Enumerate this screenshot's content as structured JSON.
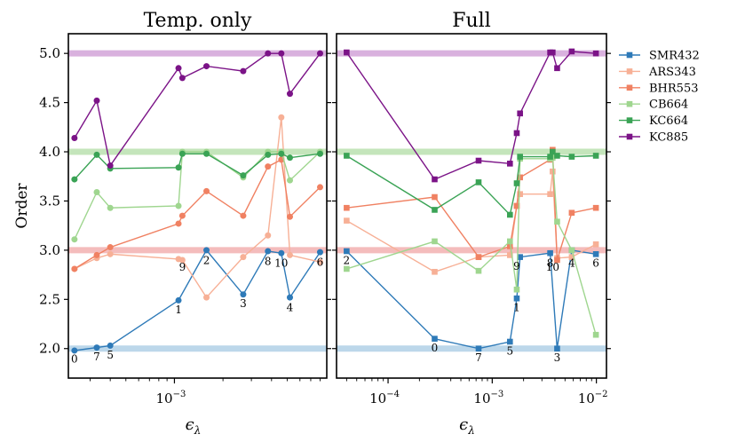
{
  "colors": {
    "SMR432": "#2e7ab8",
    "ARS343": "#f7b096",
    "BHR553": "#f08162",
    "CB664": "#9fd68f",
    "KC664": "#3aa355",
    "KC885": "#7b1387",
    "band_blue": "#bcd7ea",
    "band_red": "#f4bcbc",
    "band_green": "#c4e5bb",
    "band_purple": "#d9b1de"
  },
  "chart_data": [
    {
      "type": "line",
      "title": "Temp. only",
      "xscale": "log",
      "xlim": [
        0.00022,
        0.0088
      ],
      "ylim": [
        1.7,
        5.2
      ],
      "ylabel": "Order",
      "xlabel": "ϵλ",
      "xlabel_main": "ϵ",
      "xlabel_sub": "λ",
      "yticks": [
        2.0,
        2.5,
        3.0,
        3.5,
        4.0,
        4.5,
        5.0
      ],
      "ytick_labels": [
        "2.0",
        "2.5",
        "3.0",
        "3.5",
        "4.0",
        "4.5",
        "5.0"
      ],
      "xticks": [
        {
          "value": 0.001,
          "base": "10",
          "exp": "−3"
        }
      ],
      "reference_bands": [
        {
          "y": 2.0,
          "color_key": "band_blue"
        },
        {
          "y": 3.0,
          "color_key": "band_red"
        },
        {
          "y": 4.0,
          "color_key": "band_green"
        },
        {
          "y": 5.0,
          "color_key": "band_purple"
        }
      ],
      "series": [
        {
          "name": "SMR432",
          "marker": "circle",
          "x": [
            0.00024,
            0.00033,
            0.0004,
            0.00106,
            0.00158,
            0.00267,
            0.0038,
            0.0046,
            0.0052,
            0.008
          ],
          "y": [
            1.98,
            2.01,
            2.03,
            2.49,
            3.0,
            2.55,
            2.99,
            2.97,
            2.52,
            2.98
          ]
        },
        {
          "name": "ARS343",
          "marker": "circle",
          "x": [
            0.00024,
            0.00033,
            0.0004,
            0.00106,
            0.00112,
            0.00158,
            0.00267,
            0.0038,
            0.0046,
            0.0052,
            0.008
          ],
          "y": [
            2.81,
            2.92,
            2.96,
            2.91,
            2.9,
            2.52,
            2.93,
            3.15,
            4.35,
            2.95,
            2.88
          ]
        },
        {
          "name": "BHR553",
          "marker": "circle",
          "x": [
            0.00024,
            0.00033,
            0.0004,
            0.00106,
            0.00112,
            0.00158,
            0.00267,
            0.0038,
            0.0046,
            0.0052,
            0.008
          ],
          "y": [
            2.81,
            2.95,
            3.03,
            3.27,
            3.35,
            3.6,
            3.35,
            3.85,
            3.92,
            3.34,
            3.64
          ]
        },
        {
          "name": "CB664",
          "marker": "circle",
          "x": [
            0.00024,
            0.00033,
            0.0004,
            0.00106,
            0.00112,
            0.00158,
            0.00267,
            0.0038,
            0.0046,
            0.0052,
            0.008
          ],
          "y": [
            3.11,
            3.59,
            3.43,
            3.45,
            4.0,
            4.0,
            3.74,
            4.0,
            4.0,
            3.71,
            4.0
          ]
        },
        {
          "name": "KC664",
          "marker": "circle",
          "x": [
            0.00024,
            0.00033,
            0.0004,
            0.00106,
            0.00112,
            0.00158,
            0.00267,
            0.0038,
            0.0046,
            0.0052,
            0.008
          ],
          "y": [
            3.72,
            3.97,
            3.83,
            3.84,
            3.98,
            3.98,
            3.76,
            3.97,
            3.98,
            3.94,
            3.98
          ]
        },
        {
          "name": "KC885",
          "marker": "circle",
          "x": [
            0.00024,
            0.00033,
            0.0004,
            0.00106,
            0.00112,
            0.00158,
            0.00267,
            0.0038,
            0.0046,
            0.0052,
            0.008
          ],
          "y": [
            4.14,
            4.52,
            3.86,
            4.85,
            4.75,
            4.87,
            4.82,
            5.0,
            5.0,
            4.59,
            5.0
          ]
        }
      ],
      "annotations": [
        {
          "text": "0",
          "x": 0.00024,
          "y": 1.86
        },
        {
          "text": "7",
          "x": 0.00033,
          "y": 1.88
        },
        {
          "text": "5",
          "x": 0.0004,
          "y": 1.9
        },
        {
          "text": "1",
          "x": 0.00106,
          "y": 2.36
        },
        {
          "text": "9",
          "x": 0.00112,
          "y": 2.79
        },
        {
          "text": "2",
          "x": 0.00158,
          "y": 2.86
        },
        {
          "text": "3",
          "x": 0.00267,
          "y": 2.42
        },
        {
          "text": "8",
          "x": 0.0038,
          "y": 2.85
        },
        {
          "text": "10",
          "x": 0.0046,
          "y": 2.83
        },
        {
          "text": "4",
          "x": 0.0052,
          "y": 2.38
        },
        {
          "text": "6",
          "x": 0.008,
          "y": 2.84
        }
      ]
    },
    {
      "type": "line",
      "title": "Full",
      "xscale": "log",
      "xlim": [
        3.2e-05,
        0.0125
      ],
      "ylim": [
        1.7,
        5.2
      ],
      "xlabel": "ϵλ",
      "xlabel_main": "ϵ",
      "xlabel_sub": "λ",
      "yticks": [
        2.0,
        2.5,
        3.0,
        3.5,
        4.0,
        4.5,
        5.0
      ],
      "xticks": [
        {
          "value": 0.0001,
          "base": "10",
          "exp": "−4"
        },
        {
          "value": 0.001,
          "base": "10",
          "exp": "−3"
        },
        {
          "value": 0.01,
          "base": "10",
          "exp": "−2"
        }
      ],
      "reference_bands": [
        {
          "y": 2.0,
          "color_key": "band_blue"
        },
        {
          "y": 3.0,
          "color_key": "band_red"
        },
        {
          "y": 4.0,
          "color_key": "band_green"
        },
        {
          "y": 5.0,
          "color_key": "band_purple"
        }
      ],
      "series": [
        {
          "name": "SMR432",
          "marker": "square",
          "x": [
            4e-05,
            0.00028,
            0.00074,
            0.00148,
            0.00172,
            0.00185,
            0.0036,
            0.0042,
            0.0058,
            0.0099
          ],
          "y": [
            2.99,
            2.1,
            2.0,
            2.07,
            2.51,
            2.93,
            2.97,
            2.0,
            3.0,
            2.96
          ]
        },
        {
          "name": "ARS343",
          "marker": "square",
          "x": [
            4e-05,
            0.00028,
            0.00074,
            0.00148,
            0.00172,
            0.00185,
            0.0036,
            0.0038,
            0.0042,
            0.0058,
            0.0099
          ],
          "y": [
            3.3,
            2.78,
            2.93,
            2.95,
            3.45,
            3.57,
            3.57,
            3.8,
            2.92,
            2.93,
            3.06
          ]
        },
        {
          "name": "BHR553",
          "marker": "square",
          "x": [
            4e-05,
            0.00028,
            0.00074,
            0.00148,
            0.00172,
            0.00185,
            0.0036,
            0.0038,
            0.0042,
            0.0058,
            0.0099
          ],
          "y": [
            3.43,
            3.54,
            2.93,
            3.04,
            3.45,
            3.74,
            3.92,
            4.02,
            2.9,
            3.38,
            3.43
          ]
        },
        {
          "name": "CB664",
          "marker": "square",
          "x": [
            4e-05,
            0.00028,
            0.00074,
            0.00148,
            0.00172,
            0.00185,
            0.0036,
            0.0038,
            0.0042,
            0.0058,
            0.0099
          ],
          "y": [
            2.81,
            3.09,
            2.79,
            3.09,
            2.6,
            3.93,
            3.93,
            3.94,
            3.29,
            3.0,
            2.14
          ]
        },
        {
          "name": "KC664",
          "marker": "square",
          "x": [
            4e-05,
            0.00028,
            0.00074,
            0.00148,
            0.00172,
            0.00185,
            0.0036,
            0.0038,
            0.0042,
            0.0058,
            0.0099
          ],
          "y": [
            3.96,
            3.41,
            3.69,
            3.36,
            3.68,
            3.95,
            3.95,
            4.0,
            3.96,
            3.95,
            3.96
          ]
        },
        {
          "name": "KC885",
          "marker": "square",
          "x": [
            4e-05,
            0.00028,
            0.00074,
            0.00148,
            0.00172,
            0.00185,
            0.0036,
            0.0038,
            0.0042,
            0.0058,
            0.0099
          ],
          "y": [
            5.01,
            3.72,
            3.91,
            3.88,
            4.19,
            4.39,
            5.01,
            5.01,
            4.85,
            5.02,
            5.0
          ]
        }
      ],
      "annotations": [
        {
          "text": "2",
          "x": 4e-05,
          "y": 2.86
        },
        {
          "text": "0",
          "x": 0.00028,
          "y": 1.97
        },
        {
          "text": "7",
          "x": 0.00074,
          "y": 1.87
        },
        {
          "text": "5",
          "x": 0.00148,
          "y": 1.94
        },
        {
          "text": "9",
          "x": 0.00172,
          "y": 2.8
        },
        {
          "text": "1",
          "x": 0.00172,
          "y": 2.38
        },
        {
          "text": "8",
          "x": 0.0036,
          "y": 2.83
        },
        {
          "text": "10",
          "x": 0.0038,
          "y": 2.79
        },
        {
          "text": "3",
          "x": 0.0042,
          "y": 1.87
        },
        {
          "text": "4",
          "x": 0.0058,
          "y": 2.83
        },
        {
          "text": "6",
          "x": 0.0099,
          "y": 2.83
        }
      ]
    }
  ],
  "legend": {
    "placement": "right-outside",
    "entries": [
      "SMR432",
      "ARS343",
      "BHR553",
      "CB664",
      "KC664",
      "KC885"
    ]
  }
}
